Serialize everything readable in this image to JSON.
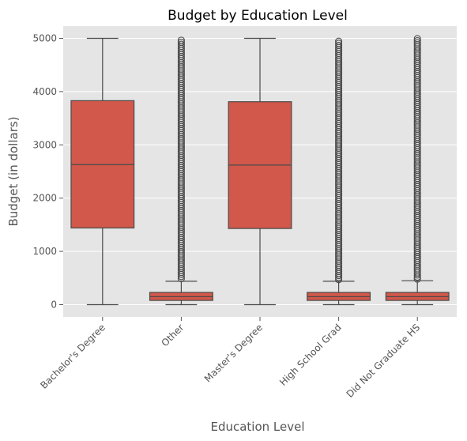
{
  "chart_data": {
    "type": "box",
    "title": "Budget by Education Level",
    "xlabel": "Education Level",
    "ylabel": "Budget (in dollars)",
    "ylim": [
      -230,
      5230
    ],
    "yticks": [
      0,
      1000,
      2000,
      3000,
      4000,
      5000
    ],
    "grid": true,
    "box_color": "#d1584a",
    "categories": [
      "Bachelor's Degree",
      "Other",
      "Master's Degree",
      "High School Grad",
      "Did Not Graduate HS"
    ],
    "boxes": [
      {
        "category": "Bachelor's Degree",
        "whisker_low": 0,
        "q1": 1440,
        "median": 2630,
        "q3": 3830,
        "whisker_high": 5000,
        "outliers_from": null,
        "outliers_to": null
      },
      {
        "category": "Other",
        "whisker_low": 0,
        "q1": 80,
        "median": 150,
        "q3": 230,
        "whisker_high": 440,
        "outliers_from": 490,
        "outliers_to": 5000
      },
      {
        "category": "Master's Degree",
        "whisker_low": 0,
        "q1": 1430,
        "median": 2620,
        "q3": 3810,
        "whisker_high": 5000,
        "outliers_from": null,
        "outliers_to": null
      },
      {
        "category": "High School Grad",
        "whisker_low": 0,
        "q1": 80,
        "median": 150,
        "q3": 230,
        "whisker_high": 440,
        "outliers_from": 470,
        "outliers_to": 4960
      },
      {
        "category": "Did Not Graduate HS",
        "whisker_low": 0,
        "q1": 80,
        "median": 150,
        "q3": 230,
        "whisker_high": 450,
        "outliers_from": 480,
        "outliers_to": 5000
      }
    ]
  }
}
